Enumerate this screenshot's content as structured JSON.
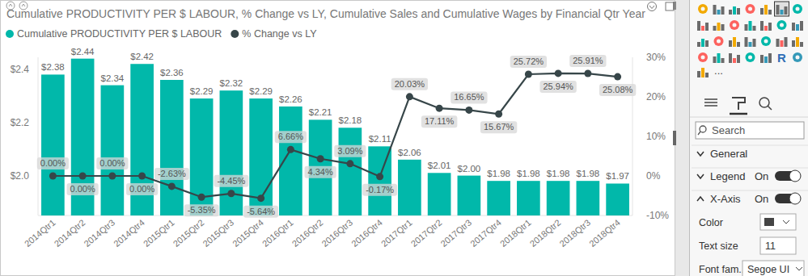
{
  "chart_data": {
    "type": "bar",
    "title": "Cumulative PRODUCTIVITY PER $ LABOUR, % Change vs LY, Cumulative Sales and Cumulative Wages by Financial Qtr Year",
    "categories": [
      "2014Qtr1",
      "2014Qtr2",
      "2014Qtr3",
      "2014Qtr4",
      "2015Qtr1",
      "2015Qtr2",
      "2015Qtr3",
      "2015Qtr4",
      "2016Qtr1",
      "2016Qtr2",
      "2016Qtr3",
      "2016Qtr4",
      "2017Qtr1",
      "2017Qtr2",
      "2017Qtr3",
      "2017Qtr4",
      "2018Qtr1",
      "2018Qtr2",
      "2018Qtr3",
      "2018Qtr4"
    ],
    "series": [
      {
        "name": "Cumulative PRODUCTIVITY PER $ LABOUR",
        "type": "bar",
        "color": "#01B8AA",
        "values": [
          2.38,
          2.44,
          2.34,
          2.42,
          2.36,
          2.29,
          2.32,
          2.29,
          2.26,
          2.21,
          2.18,
          2.11,
          2.06,
          2.01,
          2.0,
          1.98,
          1.98,
          1.98,
          1.98,
          1.97
        ],
        "value_labels": [
          "$2.38",
          "$2.44",
          "$2.34",
          "$2.42",
          "$2.36",
          "$2.29",
          "$2.32",
          "$2.29",
          "$2.26",
          "$2.21",
          "$2.18",
          "$2.11",
          "$2.06",
          "$2.01",
          "$2.00",
          "$1.98",
          "$1.98",
          "$1.98",
          "$1.98",
          "$1.97"
        ]
      },
      {
        "name": "% Change vs LY",
        "type": "line",
        "color": "#374649",
        "axis": "y2",
        "marker": "circle",
        "values": [
          0.0,
          0.0,
          0.0,
          0.0,
          -2.63,
          -5.35,
          -4.45,
          -5.64,
          6.66,
          4.34,
          3.09,
          -0.17,
          20.03,
          17.11,
          16.65,
          15.67,
          25.72,
          25.94,
          25.91,
          25.08
        ],
        "value_labels": [
          "0.00%",
          "0.00%",
          "0.00%",
          "0.00%",
          "-2.63%",
          "-5.35%",
          "-4.45%",
          "-5.64%",
          "6.66%",
          "4.34%",
          "3.09%",
          "-0.17%",
          "20.03%",
          "17.11%",
          "16.65%",
          "15.67%",
          "25.72%",
          "25.94%",
          "25.91%",
          "25.08%"
        ]
      }
    ],
    "ylim": [
      1.85,
      2.445
    ],
    "yticks": [
      {
        "value": 2.0,
        "label": "$2.0"
      },
      {
        "value": 2.2,
        "label": "$2.2"
      },
      {
        "value": 2.4,
        "label": "$2.4"
      }
    ],
    "y2lim": [
      -10,
      30
    ],
    "y2ticks": [
      {
        "value": -10,
        "label": "-10%"
      },
      {
        "value": 0,
        "label": "0%"
      },
      {
        "value": 10,
        "label": "10%"
      },
      {
        "value": 20,
        "label": "20%"
      },
      {
        "value": 30,
        "label": "30%"
      }
    ],
    "legend": "top",
    "data_labels": true,
    "grid": false
  },
  "format_pane": {
    "gallery_text_icons": [
      "R",
      "..."
    ],
    "search": "Search",
    "sections": [
      {
        "label": "General"
      },
      {
        "label": "Legend",
        "toggle": "On"
      },
      {
        "label": "X-Axis",
        "toggle": "On"
      }
    ],
    "properties": [
      {
        "label": "Color"
      },
      {
        "label": "Text size",
        "value": 11
      },
      {
        "label": "Font fam...",
        "value": "Segoe UI"
      }
    ]
  }
}
